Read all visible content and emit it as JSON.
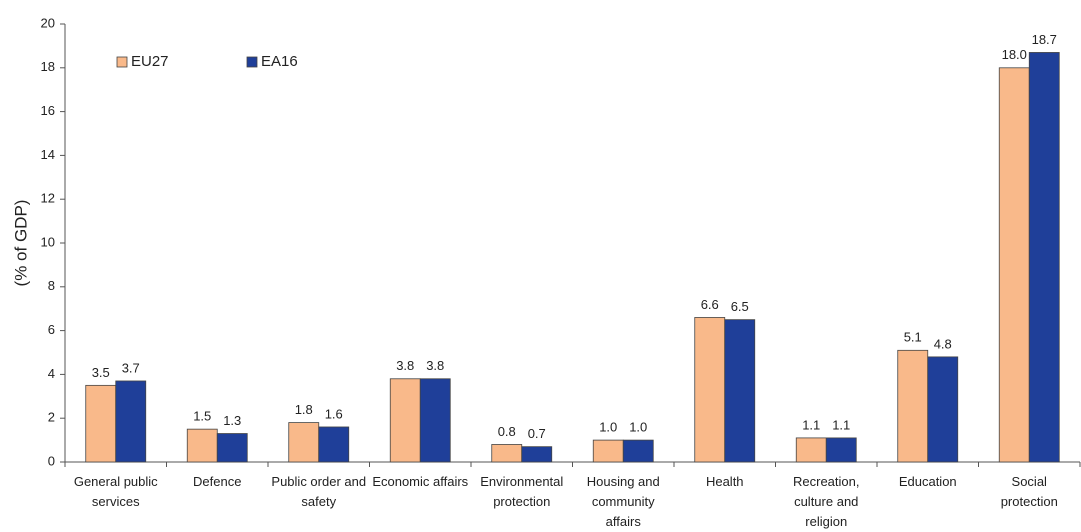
{
  "chart_data": {
    "type": "bar",
    "y_label": "(% of GDP)",
    "categories": [
      "General public services",
      "Defence",
      "Public order and safety",
      "Economic affairs",
      "Environmental protection",
      "Housing and community affairs",
      "Health",
      "Recreation, culture and religion",
      "Education",
      "Social protection"
    ],
    "series": [
      {
        "name": "EU27",
        "color": "#f9b98a",
        "values": [
          3.5,
          1.5,
          1.8,
          3.8,
          0.8,
          1.0,
          6.6,
          1.1,
          5.1,
          18.0
        ],
        "value_labels": [
          "3.5",
          "1.5",
          "1.8",
          "3.8",
          "0.8",
          "1.0",
          "6.6",
          "1.1",
          "5.1",
          "18.0"
        ]
      },
      {
        "name": "EA16",
        "color": "#1f3f99",
        "values": [
          3.7,
          1.3,
          1.6,
          3.8,
          0.7,
          1.0,
          6.5,
          1.1,
          4.8,
          18.7
        ],
        "value_labels": [
          "3.7",
          "1.3",
          "1.6",
          "3.8",
          "0.7",
          "1.0",
          "6.5",
          "1.1",
          "4.8",
          "18.7"
        ]
      }
    ],
    "ylim": [
      0,
      20
    ],
    "yticks": [
      0,
      2,
      4,
      6,
      8,
      10,
      12,
      14,
      16,
      18,
      20
    ],
    "grid": false,
    "legend": "top-left"
  }
}
